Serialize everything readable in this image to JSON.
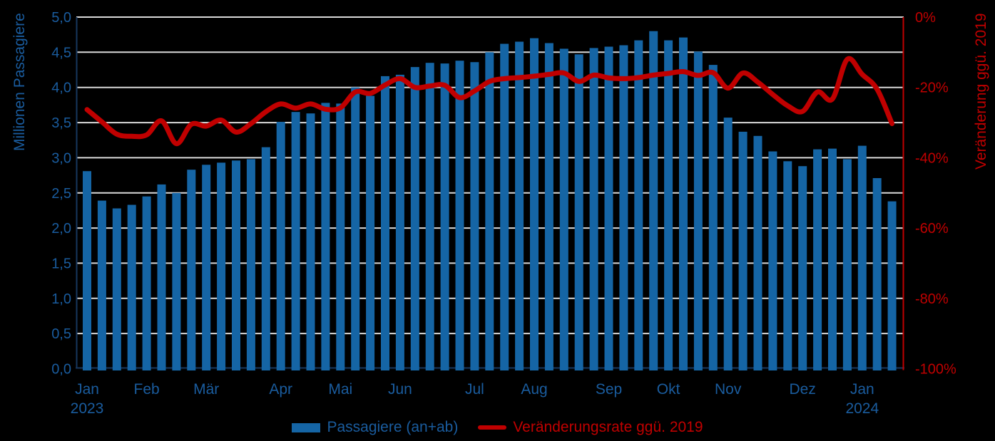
{
  "chart_data": {
    "type": "bar+line",
    "frequency": "weekly",
    "weeks": 55,
    "bar_series": {
      "name": "Passagiere (an+ab)",
      "unit": "Millionen",
      "values": [
        2.81,
        2.39,
        2.28,
        2.33,
        2.45,
        2.62,
        2.5,
        2.83,
        2.9,
        2.93,
        2.96,
        2.98,
        3.15,
        3.51,
        3.65,
        3.63,
        3.78,
        3.77,
        4.0,
        3.88,
        4.16,
        4.18,
        4.29,
        4.35,
        4.34,
        4.38,
        4.36,
        4.5,
        4.62,
        4.65,
        4.7,
        4.63,
        4.55,
        4.47,
        4.56,
        4.58,
        4.6,
        4.67,
        4.8,
        4.67,
        4.71,
        4.51,
        4.32,
        3.57,
        3.37,
        3.31,
        3.09,
        2.95,
        2.88,
        3.12,
        3.13,
        2.98,
        3.17,
        2.71,
        2.38
      ]
    },
    "line_series": {
      "name": "Veränderungsrate ggü. 2019",
      "unit": "%",
      "values": [
        -26.3,
        -29.8,
        -33.3,
        -33.9,
        -33.5,
        -29.5,
        -36.0,
        -30.5,
        -31.0,
        -29.3,
        -32.7,
        -30.3,
        -26.9,
        -24.7,
        -25.9,
        -24.7,
        -26.2,
        -25.8,
        -21.3,
        -21.7,
        -19.3,
        -17.5,
        -20.0,
        -19.6,
        -19.4,
        -22.9,
        -21.0,
        -18.3,
        -17.5,
        -17.2,
        -16.8,
        -16.3,
        -15.9,
        -18.3,
        -16.5,
        -17.3,
        -17.5,
        -17.2,
        -16.5,
        -16.0,
        -15.5,
        -16.6,
        -15.8,
        -20.2,
        -15.9,
        -18.5,
        -22.0,
        -25.2,
        -26.8,
        -21.3,
        -23.3,
        -12.0,
        -16.3,
        -20.5,
        -30.3
      ]
    },
    "months": [
      {
        "label": "Jan",
        "sublabel": "2023",
        "week_index": 0
      },
      {
        "label": "Feb",
        "week_index": 4
      },
      {
        "label": "Mär",
        "week_index": 8
      },
      {
        "label": "Apr",
        "week_index": 13
      },
      {
        "label": "Mai",
        "week_index": 17
      },
      {
        "label": "Jun",
        "week_index": 21
      },
      {
        "label": "Jul",
        "week_index": 26
      },
      {
        "label": "Aug",
        "week_index": 30
      },
      {
        "label": "Sep",
        "week_index": 35
      },
      {
        "label": "Okt",
        "week_index": 39
      },
      {
        "label": "Nov",
        "week_index": 43
      },
      {
        "label": "Dez",
        "week_index": 48
      },
      {
        "label": "Jan",
        "sublabel": "2024",
        "week_index": 52
      }
    ],
    "left_axis": {
      "title": "Millionen Passagiere",
      "ticks": [
        "5,0",
        "4,5",
        "4,0",
        "3,5",
        "3,0",
        "2,5",
        "2,0",
        "1,5",
        "1,0",
        "0,5",
        "0,0"
      ],
      "min": 0,
      "max": 5
    },
    "right_axis": {
      "title": "Veränderung ggü. 2019",
      "ticks": [
        "0%",
        "-20%",
        "-40%",
        "-60%",
        "-80%",
        "-100%"
      ],
      "min": -100,
      "max": 0
    },
    "legend": {
      "position": "bottom",
      "items": [
        {
          "label": "Passagiere (an+ab)",
          "type": "bar"
        },
        {
          "label": "Veränderungsrate ggü. 2019",
          "type": "line"
        }
      ]
    },
    "grid": true,
    "colors": {
      "bar": "#1565A5",
      "line": "#C00000",
      "blue_text": "#1A5C9E",
      "red_text": "#C00000",
      "grid": "#D9D9D9",
      "axis": "#17375E",
      "background": "#000000"
    }
  }
}
